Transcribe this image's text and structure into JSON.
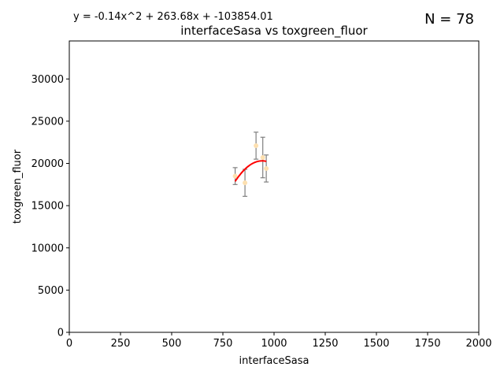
{
  "chart_data": {
    "type": "scatter",
    "title": "interfaceSasa vs toxgreen_fluor",
    "equation": "y = -0.14x^2 + 263.68x + -103854.01",
    "n_label": "N = 78",
    "xlabel": "interfaceSasa",
    "ylabel": "toxgreen_fluor",
    "xlim": [
      0,
      2000
    ],
    "ylim": [
      0,
      34500
    ],
    "xticks": [
      0,
      250,
      500,
      750,
      1000,
      1250,
      1500,
      1750,
      2000
    ],
    "yticks": [
      0,
      5000,
      10000,
      15000,
      20000,
      25000,
      30000
    ],
    "grid": false,
    "points": [
      {
        "x": 810,
        "y": 18500,
        "err": 1000,
        "color": "#fde0b0"
      },
      {
        "x": 858,
        "y": 17700,
        "err": 1600,
        "color": "#fde0b0"
      },
      {
        "x": 912,
        "y": 22100,
        "err": 1600,
        "color": "#fde0b0"
      },
      {
        "x": 945,
        "y": 20700,
        "err": 2400,
        "color": "#fde0b0"
      },
      {
        "x": 962,
        "y": 19400,
        "err": 1600,
        "color": "#fde0b0"
      }
    ],
    "fit": {
      "a": -0.14,
      "b": 263.68,
      "c": -103854.01,
      "x_start": 810,
      "x_end": 962,
      "color": "#ff0000"
    },
    "errorbar_color": "#7f7f7f"
  }
}
